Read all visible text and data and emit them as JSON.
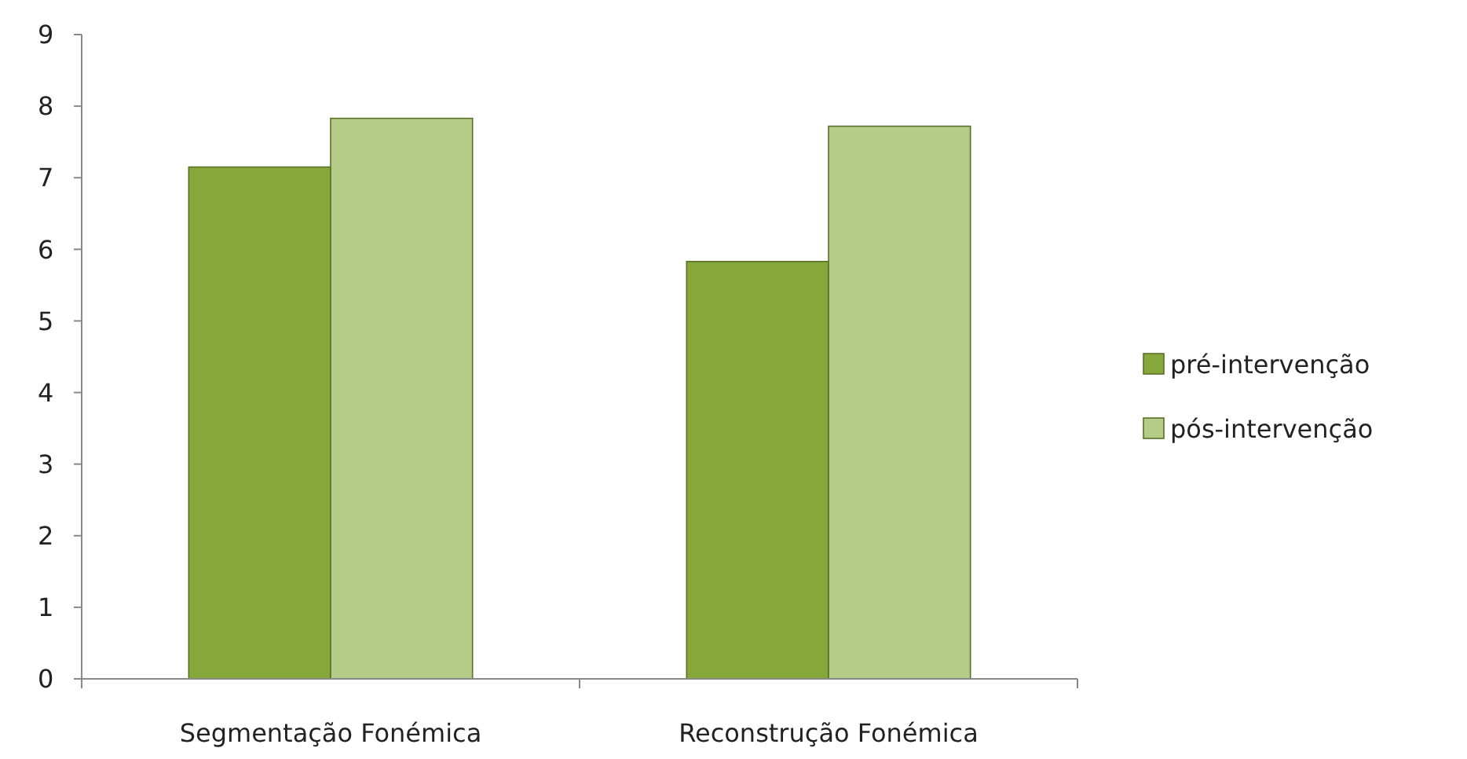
{
  "chart_data": {
    "type": "bar",
    "categories": [
      "Segmentação Fonémica",
      "Reconstrução Fonémica"
    ],
    "series": [
      {
        "name": "pré-intervenção",
        "color": "#86a83a",
        "values": [
          7.15,
          5.83
        ]
      },
      {
        "name": "pós-intervenção",
        "color": "#b4cc88",
        "values": [
          7.83,
          7.72
        ]
      }
    ],
    "ylim": [
      0,
      9
    ],
    "yticks": [
      0,
      1,
      2,
      3,
      4,
      5,
      6,
      7,
      8,
      9
    ],
    "grid": false,
    "legend": "right"
  }
}
